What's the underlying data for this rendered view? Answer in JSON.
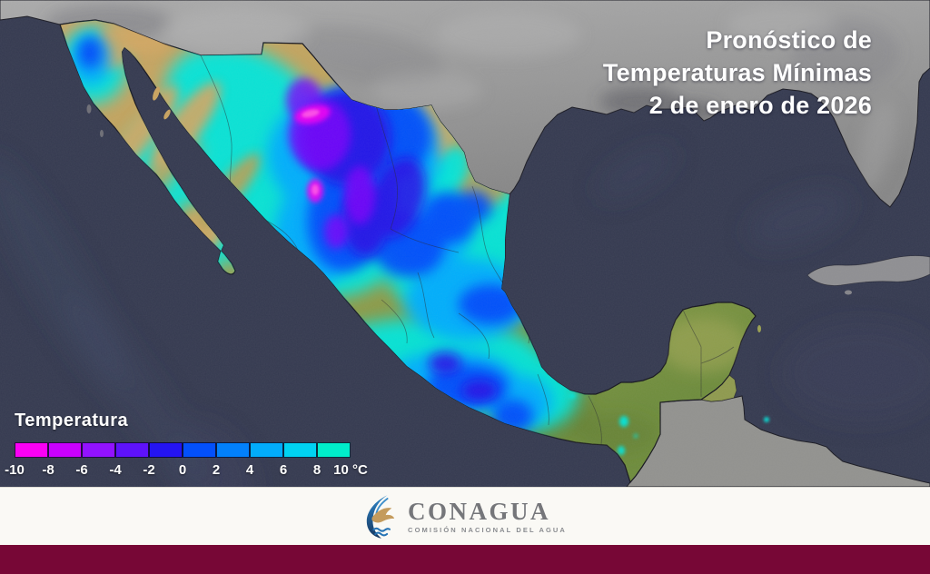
{
  "title": {
    "line1": "Pronóstico de",
    "line2": "Temperaturas Mínimas",
    "line3": "2 de enero de 2026"
  },
  "legend": {
    "label": "Temperatura",
    "unit": "°C",
    "scale_min": -10,
    "scale_max": 10,
    "scale_step": 2,
    "tick_labels": [
      "-10",
      "-8",
      "-6",
      "-4",
      "-2",
      "0",
      "2",
      "4",
      "6",
      "8",
      "10 °C"
    ],
    "segments": [
      {
        "range": "-10 a -8",
        "color": "#fb00f5"
      },
      {
        "range": "-8 a -6",
        "color": "#c900ff"
      },
      {
        "range": "-6 a -4",
        "color": "#9212ff"
      },
      {
        "range": "-4 a -2",
        "color": "#5e12fb"
      },
      {
        "range": "-2 a 0",
        "color": "#2414f2"
      },
      {
        "range": "0 a 2",
        "color": "#0350fb"
      },
      {
        "range": "2 a 4",
        "color": "#0280fb"
      },
      {
        "range": "4 a 6",
        "color": "#02acfb"
      },
      {
        "range": "6 a 8",
        "color": "#00d2f2"
      },
      {
        "range": "8 a 10",
        "color": "#00edcb"
      }
    ]
  },
  "footer": {
    "logo_name": "CONAGUA",
    "logo_subtitle": "COMISIÓN NACIONAL DEL AGUA"
  },
  "colors": {
    "ocean": "#353a50",
    "us_land": "#9a9a9a",
    "mexico_warm_land": "#c9a25f",
    "mexico_green_land": "#7e9542",
    "footer_band": "#faf9f5",
    "footer_bar": "#770736",
    "title_text": "#ffffff"
  }
}
